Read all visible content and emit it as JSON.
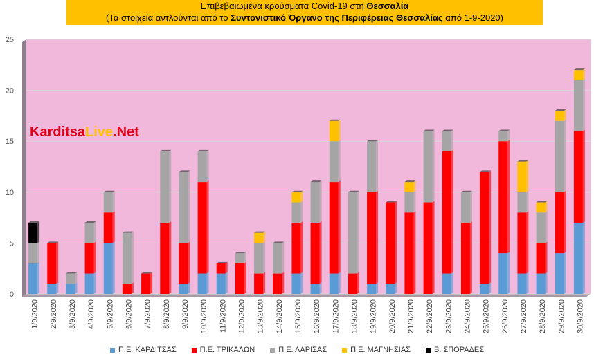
{
  "title": {
    "line1_prefix": "Επιβεβαιωμένα κρούσματα Covid-19 στη ",
    "line1_bold": "Θεσσαλία",
    "line2_prefix": "(Τα στοιχεία αντλούνται από το ",
    "line2_bold": "Συντονιστικό Όργανο της Περιφέρειας Θεσσαλίας",
    "line2_suffix": " από 1-9-2020)"
  },
  "watermark": {
    "part1": "Karditsa",
    "part2": "Live",
    "part3": ".Net"
  },
  "colors": {
    "plot_bg": "#f2b8dc",
    "title_bg": "#ffc000"
  },
  "chart_data": {
    "type": "bar",
    "stacked": true,
    "categories": [
      "1/9/2020",
      "2/9/2020",
      "3/9/2020",
      "4/9/2020",
      "5/9/2020",
      "6/9/2020",
      "7/9/2020",
      "8/9/2020",
      "9/9/2020",
      "10/9/2020",
      "11/9/2020",
      "12/9/2020",
      "13/9/2020",
      "14/9/2020",
      "15/9/2020",
      "16/9/2020",
      "17/9/2020",
      "18/9/2020",
      "19/9/2020",
      "20/9/2020",
      "21/9/2020",
      "22/9/2020",
      "23/9/2020",
      "24/9/2020",
      "25/9/2020",
      "26/9/2020",
      "27/9/2020",
      "28/9/2020",
      "29/9/2020",
      "30/9/2020"
    ],
    "series": [
      {
        "name": "Π.Ε. ΚΑΡΔΙΤΣΑΣ",
        "color": "#5b9bd5",
        "values": [
          3,
          1,
          1,
          2,
          5,
          0,
          0,
          0,
          1,
          2,
          2,
          0,
          0,
          0,
          2,
          1,
          2,
          0,
          1,
          1,
          0,
          0,
          2,
          0,
          1,
          4,
          2,
          2,
          4,
          7
        ]
      },
      {
        "name": "Π.Ε. ΤΡΙΚΑΛΩΝ",
        "color": "#ff0000",
        "values": [
          0,
          4,
          0,
          3,
          3,
          1,
          2,
          7,
          4,
          9,
          1,
          3,
          2,
          2,
          5,
          6,
          9,
          2,
          9,
          8,
          8,
          9,
          12,
          7,
          11,
          11,
          6,
          3,
          6,
          9
        ]
      },
      {
        "name": "Π.Ε. ΛΑΡΙΣΑΣ",
        "color": "#a5a5a5",
        "values": [
          2,
          0,
          1,
          2,
          2,
          5,
          0,
          7,
          7,
          3,
          0,
          1,
          3,
          3,
          2,
          4,
          4,
          8,
          5,
          0,
          2,
          7,
          2,
          3,
          0,
          1,
          2,
          3,
          7,
          5
        ]
      },
      {
        "name": "Π.Ε. ΜΑΓΝΗΣΙΑΣ",
        "color": "#ffc000",
        "values": [
          0,
          0,
          0,
          0,
          0,
          0,
          0,
          0,
          0,
          0,
          0,
          0,
          1,
          0,
          1,
          0,
          2,
          0,
          0,
          0,
          1,
          0,
          0,
          0,
          0,
          0,
          3,
          1,
          1,
          1
        ]
      },
      {
        "name": "Β. ΣΠΟΡΑΔΕΣ",
        "color": "#000000",
        "values": [
          2,
          0,
          0,
          0,
          0,
          0,
          0,
          0,
          0,
          0,
          0,
          0,
          0,
          0,
          0,
          0,
          0,
          0,
          0,
          0,
          0,
          0,
          0,
          0,
          0,
          0,
          0,
          0,
          0,
          0
        ]
      }
    ],
    "yticks": [
      "0",
      "5",
      "10",
      "15",
      "20",
      "25"
    ],
    "ylim": [
      0,
      25
    ],
    "grid": true,
    "legend_position": "bottom"
  }
}
